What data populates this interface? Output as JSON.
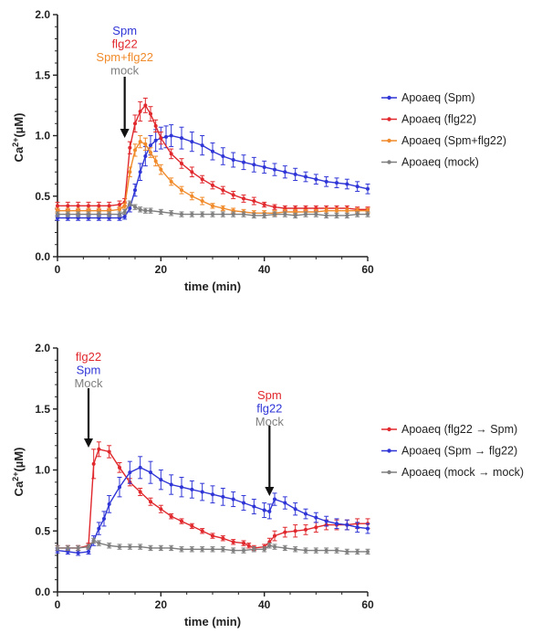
{
  "colors": {
    "blue": "#2f35d6",
    "red": "#e0282d",
    "orange": "#f08a2a",
    "gray": "#7f7f7f",
    "axis": "#222222",
    "arrow": "#111111"
  },
  "chart_data": [
    {
      "type": "line",
      "xlabel": "time (min)",
      "ylabel": "Ca²⁺(µM)",
      "ylabel_parts": {
        "base": "Ca",
        "sup": "2+",
        "unit": "(µM)"
      },
      "xlim": [
        0,
        60
      ],
      "ylim": [
        0,
        2.0
      ],
      "xticks": [
        "0",
        "20",
        "40",
        "60"
      ],
      "yticks": [
        "0.0",
        "0.5",
        "1.0",
        "1.5",
        "2.0"
      ],
      "grid": false,
      "legend_position": "right",
      "annotation": {
        "x": 13,
        "labels": [
          {
            "text": "Spm",
            "color": "blue"
          },
          {
            "text": "flg22",
            "color": "red"
          },
          {
            "text": "Spm+flg22",
            "color": "orange"
          },
          {
            "text": "mock",
            "color": "gray"
          }
        ]
      },
      "series": [
        {
          "name": "Apoaeq (Spm)",
          "color": "blue",
          "x": [
            0,
            2,
            4,
            6,
            8,
            10,
            12,
            13,
            14,
            15,
            16,
            17,
            18,
            19,
            20,
            21,
            22,
            24,
            26,
            28,
            30,
            32,
            34,
            36,
            38,
            40,
            42,
            44,
            46,
            48,
            50,
            52,
            54,
            56,
            58,
            60
          ],
          "y": [
            0.32,
            0.32,
            0.32,
            0.32,
            0.32,
            0.32,
            0.32,
            0.33,
            0.4,
            0.55,
            0.7,
            0.83,
            0.92,
            0.96,
            0.98,
            0.99,
            1.0,
            0.98,
            0.95,
            0.92,
            0.87,
            0.83,
            0.8,
            0.78,
            0.76,
            0.74,
            0.72,
            0.7,
            0.68,
            0.66,
            0.64,
            0.62,
            0.61,
            0.6,
            0.58,
            0.56
          ],
          "err": [
            0.02,
            0.02,
            0.02,
            0.02,
            0.02,
            0.02,
            0.02,
            0.02,
            0.03,
            0.05,
            0.07,
            0.08,
            0.08,
            0.09,
            0.09,
            0.09,
            0.09,
            0.09,
            0.08,
            0.08,
            0.07,
            0.07,
            0.06,
            0.06,
            0.06,
            0.05,
            0.05,
            0.05,
            0.05,
            0.04,
            0.04,
            0.04,
            0.04,
            0.04,
            0.04,
            0.04
          ]
        },
        {
          "name": "Apoaeq (flg22)",
          "color": "red",
          "x": [
            0,
            2,
            4,
            6,
            8,
            10,
            12,
            13,
            14,
            15,
            16,
            17,
            18,
            19,
            20,
            22,
            24,
            26,
            28,
            30,
            32,
            34,
            36,
            38,
            40,
            42,
            44,
            46,
            48,
            50,
            52,
            54,
            56,
            58,
            60
          ],
          "y": [
            0.42,
            0.42,
            0.42,
            0.42,
            0.42,
            0.42,
            0.43,
            0.45,
            0.9,
            1.1,
            1.2,
            1.25,
            1.18,
            1.08,
            0.98,
            0.85,
            0.77,
            0.7,
            0.64,
            0.59,
            0.55,
            0.51,
            0.48,
            0.46,
            0.43,
            0.41,
            0.4,
            0.4,
            0.4,
            0.4,
            0.4,
            0.4,
            0.4,
            0.39,
            0.39
          ],
          "err": [
            0.03,
            0.03,
            0.03,
            0.03,
            0.03,
            0.03,
            0.03,
            0.03,
            0.05,
            0.07,
            0.08,
            0.06,
            0.06,
            0.05,
            0.05,
            0.04,
            0.04,
            0.04,
            0.03,
            0.03,
            0.03,
            0.03,
            0.03,
            0.03,
            0.02,
            0.02,
            0.02,
            0.02,
            0.02,
            0.02,
            0.02,
            0.02,
            0.02,
            0.02,
            0.02
          ]
        },
        {
          "name": "Apoaeq (Spm+flg22)",
          "color": "orange",
          "x": [
            0,
            2,
            4,
            6,
            8,
            10,
            12,
            13,
            14,
            15,
            16,
            17,
            18,
            19,
            20,
            22,
            24,
            26,
            28,
            30,
            32,
            34,
            36,
            38,
            40,
            42,
            44,
            46,
            48,
            50,
            52,
            54,
            56,
            58,
            60
          ],
          "y": [
            0.38,
            0.38,
            0.38,
            0.38,
            0.38,
            0.38,
            0.39,
            0.42,
            0.7,
            0.88,
            0.95,
            0.93,
            0.86,
            0.79,
            0.72,
            0.62,
            0.55,
            0.5,
            0.46,
            0.42,
            0.4,
            0.38,
            0.37,
            0.36,
            0.36,
            0.36,
            0.37,
            0.37,
            0.37,
            0.37,
            0.38,
            0.38,
            0.38,
            0.38,
            0.38
          ],
          "err": [
            0.02,
            0.02,
            0.02,
            0.02,
            0.02,
            0.02,
            0.02,
            0.02,
            0.04,
            0.05,
            0.05,
            0.05,
            0.04,
            0.04,
            0.04,
            0.03,
            0.03,
            0.03,
            0.03,
            0.02,
            0.02,
            0.02,
            0.02,
            0.02,
            0.02,
            0.02,
            0.02,
            0.02,
            0.02,
            0.02,
            0.02,
            0.02,
            0.02,
            0.02,
            0.02
          ]
        },
        {
          "name": "Apoaeq (mock)",
          "color": "gray",
          "x": [
            0,
            2,
            4,
            6,
            8,
            10,
            12,
            13,
            14,
            15,
            16,
            17,
            18,
            20,
            22,
            24,
            26,
            28,
            30,
            32,
            34,
            36,
            38,
            40,
            42,
            44,
            46,
            48,
            50,
            52,
            54,
            56,
            58,
            60
          ],
          "y": [
            0.35,
            0.35,
            0.35,
            0.35,
            0.35,
            0.35,
            0.35,
            0.37,
            0.44,
            0.41,
            0.39,
            0.38,
            0.38,
            0.37,
            0.36,
            0.35,
            0.35,
            0.35,
            0.35,
            0.35,
            0.35,
            0.35,
            0.34,
            0.34,
            0.35,
            0.35,
            0.34,
            0.35,
            0.35,
            0.34,
            0.34,
            0.34,
            0.35,
            0.35
          ],
          "err": [
            0.02,
            0.02,
            0.02,
            0.02,
            0.02,
            0.02,
            0.02,
            0.02,
            0.02,
            0.02,
            0.02,
            0.02,
            0.02,
            0.02,
            0.02,
            0.02,
            0.02,
            0.02,
            0.02,
            0.02,
            0.02,
            0.02,
            0.02,
            0.02,
            0.02,
            0.02,
            0.02,
            0.02,
            0.02,
            0.02,
            0.02,
            0.02,
            0.02,
            0.02
          ]
        }
      ]
    },
    {
      "type": "line",
      "xlabel": "time (min)",
      "ylabel": "Ca²⁺(µM)",
      "ylabel_parts": {
        "base": "Ca",
        "sup": "2+",
        "unit": "(µM)"
      },
      "xlim": [
        0,
        60
      ],
      "ylim": [
        0,
        2.0
      ],
      "xticks": [
        "0",
        "20",
        "40",
        "60"
      ],
      "yticks": [
        "0.0",
        "0.5",
        "1.0",
        "1.5",
        "2.0"
      ],
      "grid": false,
      "legend_position": "right",
      "annotations": [
        {
          "x": 6,
          "labels": [
            {
              "text": "flg22",
              "color": "red"
            },
            {
              "text": "Spm",
              "color": "blue"
            },
            {
              "text": "Mock",
              "color": "gray"
            }
          ]
        },
        {
          "x": 41,
          "labels": [
            {
              "text": "Spm",
              "color": "red"
            },
            {
              "text": "flg22",
              "color": "blue"
            },
            {
              "text": "Mock",
              "color": "gray"
            }
          ]
        }
      ],
      "series": [
        {
          "name": "Apoaeq (flg22 → Spm)",
          "color": "red",
          "x": [
            0,
            2,
            4,
            6,
            7,
            8,
            10,
            12,
            14,
            16,
            18,
            20,
            22,
            24,
            26,
            28,
            30,
            32,
            34,
            36,
            37,
            38,
            40,
            41,
            42,
            44,
            46,
            48,
            50,
            52,
            54,
            56,
            58,
            60
          ],
          "y": [
            0.36,
            0.36,
            0.36,
            0.38,
            1.05,
            1.17,
            1.15,
            1.02,
            0.9,
            0.82,
            0.74,
            0.68,
            0.62,
            0.58,
            0.54,
            0.5,
            0.46,
            0.44,
            0.41,
            0.4,
            0.38,
            0.36,
            0.37,
            0.41,
            0.46,
            0.49,
            0.5,
            0.51,
            0.53,
            0.55,
            0.55,
            0.55,
            0.56,
            0.56
          ],
          "err": [
            0.02,
            0.02,
            0.02,
            0.02,
            0.12,
            0.06,
            0.05,
            0.04,
            0.03,
            0.03,
            0.03,
            0.03,
            0.02,
            0.02,
            0.02,
            0.02,
            0.02,
            0.02,
            0.02,
            0.02,
            0.02,
            0.02,
            0.02,
            0.03,
            0.04,
            0.04,
            0.05,
            0.04,
            0.04,
            0.04,
            0.04,
            0.04,
            0.04,
            0.04
          ]
        },
        {
          "name": "Apoaeq (Spm → flg22)",
          "color": "blue",
          "x": [
            0,
            2,
            4,
            6,
            7,
            8,
            9,
            10,
            12,
            14,
            16,
            18,
            20,
            22,
            24,
            26,
            28,
            30,
            32,
            34,
            36,
            38,
            40,
            41,
            42,
            44,
            46,
            48,
            50,
            52,
            54,
            56,
            58,
            60
          ],
          "y": [
            0.34,
            0.33,
            0.32,
            0.33,
            0.42,
            0.52,
            0.6,
            0.72,
            0.86,
            0.98,
            1.02,
            0.98,
            0.92,
            0.88,
            0.86,
            0.84,
            0.82,
            0.8,
            0.78,
            0.76,
            0.73,
            0.7,
            0.67,
            0.66,
            0.76,
            0.73,
            0.68,
            0.64,
            0.61,
            0.58,
            0.56,
            0.55,
            0.53,
            0.52
          ],
          "err": [
            0.02,
            0.02,
            0.02,
            0.02,
            0.04,
            0.05,
            0.06,
            0.07,
            0.08,
            0.09,
            0.09,
            0.09,
            0.08,
            0.08,
            0.08,
            0.07,
            0.07,
            0.07,
            0.07,
            0.06,
            0.06,
            0.06,
            0.06,
            0.06,
            0.05,
            0.05,
            0.05,
            0.04,
            0.04,
            0.04,
            0.04,
            0.04,
            0.04,
            0.04
          ]
        },
        {
          "name": "Apoaeq (mock → mock)",
          "color": "gray",
          "x": [
            0,
            2,
            4,
            6,
            7,
            8,
            10,
            12,
            14,
            16,
            18,
            20,
            22,
            24,
            26,
            28,
            30,
            32,
            34,
            36,
            38,
            40,
            41,
            42,
            44,
            46,
            48,
            50,
            52,
            54,
            56,
            58,
            60
          ],
          "y": [
            0.36,
            0.36,
            0.36,
            0.37,
            0.42,
            0.4,
            0.38,
            0.37,
            0.37,
            0.37,
            0.36,
            0.36,
            0.36,
            0.35,
            0.35,
            0.35,
            0.35,
            0.35,
            0.34,
            0.34,
            0.35,
            0.35,
            0.38,
            0.37,
            0.36,
            0.35,
            0.34,
            0.34,
            0.34,
            0.34,
            0.33,
            0.33,
            0.33
          ],
          "err": [
            0.02,
            0.02,
            0.02,
            0.02,
            0.02,
            0.02,
            0.02,
            0.02,
            0.02,
            0.02,
            0.02,
            0.02,
            0.02,
            0.02,
            0.02,
            0.02,
            0.02,
            0.02,
            0.02,
            0.02,
            0.02,
            0.02,
            0.02,
            0.02,
            0.02,
            0.02,
            0.02,
            0.02,
            0.02,
            0.02,
            0.02,
            0.02,
            0.02
          ]
        }
      ]
    }
  ]
}
